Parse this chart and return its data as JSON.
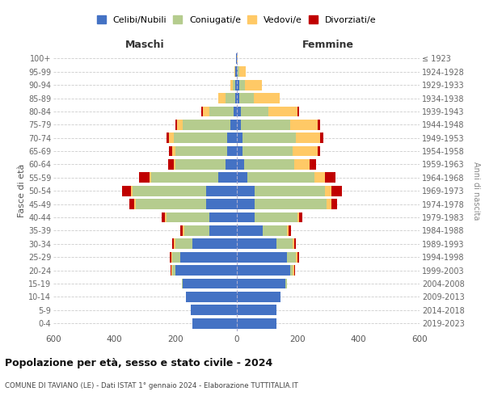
{
  "age_groups": [
    "0-4",
    "5-9",
    "10-14",
    "15-19",
    "20-24",
    "25-29",
    "30-34",
    "35-39",
    "40-44",
    "45-49",
    "50-54",
    "55-59",
    "60-64",
    "65-69",
    "70-74",
    "75-79",
    "80-84",
    "85-89",
    "90-94",
    "95-99",
    "100+"
  ],
  "birth_years": [
    "2019-2023",
    "2014-2018",
    "2009-2013",
    "2004-2008",
    "1999-2003",
    "1994-1998",
    "1989-1993",
    "1984-1988",
    "1979-1983",
    "1974-1978",
    "1969-1973",
    "1964-1968",
    "1959-1963",
    "1954-1958",
    "1949-1953",
    "1944-1948",
    "1939-1943",
    "1934-1938",
    "1929-1933",
    "1924-1928",
    "≤ 1923"
  ],
  "maschi": {
    "celibi": [
      145,
      150,
      165,
      175,
      200,
      185,
      145,
      90,
      90,
      100,
      100,
      60,
      35,
      30,
      30,
      20,
      10,
      5,
      5,
      3,
      2
    ],
    "coniugati": [
      0,
      0,
      0,
      5,
      10,
      25,
      55,
      80,
      140,
      230,
      240,
      220,
      165,
      170,
      175,
      155,
      80,
      30,
      8,
      2,
      0
    ],
    "vedovi": [
      0,
      0,
      0,
      0,
      3,
      3,
      5,
      5,
      5,
      5,
      5,
      5,
      5,
      10,
      15,
      20,
      20,
      25,
      8,
      2,
      0
    ],
    "divorziati": [
      0,
      0,
      0,
      0,
      3,
      5,
      5,
      10,
      10,
      15,
      30,
      35,
      20,
      10,
      10,
      5,
      5,
      0,
      0,
      0,
      0
    ]
  },
  "femmine": {
    "nubili": [
      130,
      130,
      145,
      160,
      175,
      165,
      130,
      85,
      60,
      60,
      60,
      35,
      25,
      20,
      20,
      15,
      15,
      8,
      8,
      5,
      2
    ],
    "coniugate": [
      0,
      0,
      0,
      5,
      10,
      30,
      55,
      80,
      140,
      235,
      230,
      220,
      165,
      165,
      175,
      160,
      90,
      50,
      20,
      5,
      0
    ],
    "vedove": [
      0,
      0,
      0,
      0,
      5,
      5,
      5,
      5,
      5,
      15,
      20,
      35,
      50,
      80,
      80,
      90,
      95,
      85,
      55,
      20,
      2
    ],
    "divorziate": [
      0,
      0,
      0,
      0,
      3,
      5,
      5,
      10,
      10,
      20,
      35,
      35,
      20,
      10,
      10,
      10,
      5,
      0,
      0,
      0,
      0
    ]
  },
  "colors": {
    "celibi": "#4472c4",
    "coniugati": "#b5cc8e",
    "vedovi": "#ffc966",
    "divorziati": "#c00000"
  },
  "legend_labels": [
    "Celibi/Nubili",
    "Coniugati/e",
    "Vedovi/e",
    "Divorziati/e"
  ],
  "title": "Popolazione per età, sesso e stato civile - 2024",
  "subtitle": "COMUNE DI TAVIANO (LE) - Dati ISTAT 1° gennaio 2024 - Elaborazione TUTTITALIA.IT",
  "xlabel_left": "Maschi",
  "xlabel_right": "Femmine",
  "ylabel": "Fasce di età",
  "ylabel_right": "Anni di nascita",
  "xlim": 600,
  "bg_color": "#ffffff",
  "grid_color": "#cccccc"
}
